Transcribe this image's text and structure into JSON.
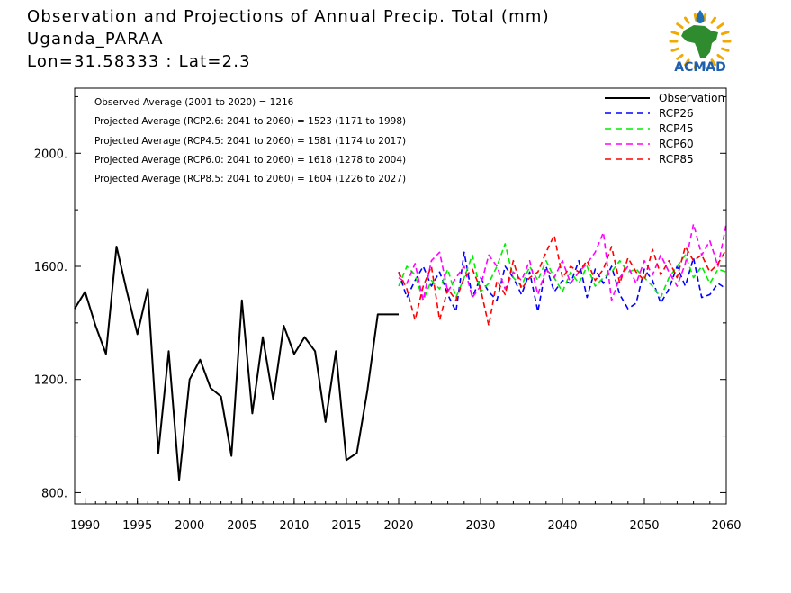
{
  "header": {
    "title_line1": "Observation and Projections of Annual Precip. Total (mm)",
    "title_line2": "Uganda_PARAA",
    "title_line3": "Lon=31.58333 : Lat=2.3"
  },
  "logo": {
    "text": "ACMAD",
    "colors": {
      "africa": "#2e8b2e",
      "drop": "#1e6fb5",
      "sun": "#f2a900",
      "text": "#1e5fae"
    }
  },
  "stats": [
    "Observed Average (2001 to 2020) = 1216",
    "Projected Average (RCP2.6: 2041 to 2060) = 1523 (1171 to 1998)",
    "Projected Average (RCP4.5: 2041 to 2060) = 1581 (1174 to 2017)",
    "Projected Average (RCP6.0: 2041 to 2060) = 1618 (1278 to 2004)",
    "Projected Average (RCP8.5: 2041 to 2060) = 1604 (1226 to 2027)"
  ],
  "chart_data": {
    "type": "line",
    "xlim": [
      1989,
      2060
    ],
    "ylim": [
      760,
      2230
    ],
    "x_ticks": [
      {
        "x": 1990,
        "label": "1990"
      },
      {
        "x": 1995,
        "label": "1995"
      },
      {
        "x": 2000,
        "label": "2000"
      },
      {
        "x": 2005,
        "label": "2005"
      },
      {
        "x": 2010,
        "label": "2010"
      },
      {
        "x": 2015,
        "label": "2015"
      },
      {
        "x": 2020,
        "label": "2020"
      },
      {
        "x": 2030,
        "label": "2030"
      },
      {
        "x": 2040,
        "label": "2040"
      },
      {
        "x": 2050,
        "label": "2050"
      },
      {
        "x": 2060,
        "label": "2060"
      }
    ],
    "y_ticks": [
      {
        "y": 800,
        "label": "800."
      },
      {
        "y": 1200,
        "label": "1200."
      },
      {
        "y": 1600,
        "label": "1600."
      },
      {
        "y": 2000,
        "label": "2000."
      }
    ],
    "y_minor_ticks": [
      1000,
      1400,
      1800,
      2200
    ],
    "legend_position": "top-right",
    "series": [
      {
        "name": "Observation",
        "color": "#000000",
        "dashed": false,
        "x": [
          1989,
          1990,
          1991,
          1992,
          1993,
          1994,
          1995,
          1996,
          1997,
          1998,
          1999,
          2000,
          2001,
          2002,
          2003,
          2004,
          2005,
          2006,
          2007,
          2008,
          2009,
          2010,
          2011,
          2012,
          2013,
          2014,
          2015,
          2016,
          2017,
          2018,
          2019,
          2020
        ],
        "values": [
          1450,
          1510,
          1390,
          1290,
          1670,
          1510,
          1360,
          1520,
          940,
          1300,
          845,
          1200,
          1270,
          1170,
          1140,
          930,
          1480,
          1080,
          1350,
          1130,
          1390,
          1290,
          1350,
          1300,
          1050,
          1300,
          915,
          940,
          1160,
          1430,
          1430,
          1430
        ]
      },
      {
        "name": "RCP26",
        "color": "#0000ff",
        "dashed": true,
        "x": [
          2020,
          2021,
          2022,
          2023,
          2024,
          2025,
          2026,
          2027,
          2028,
          2029,
          2030,
          2031,
          2032,
          2033,
          2034,
          2035,
          2036,
          2037,
          2038,
          2039,
          2040,
          2041,
          2042,
          2043,
          2044,
          2045,
          2046,
          2047,
          2048,
          2049,
          2050,
          2051,
          2052,
          2053,
          2054,
          2055,
          2056,
          2057,
          2058,
          2059,
          2060
        ],
        "values": [
          1580,
          1490,
          1550,
          1600,
          1530,
          1580,
          1500,
          1440,
          1650,
          1490,
          1560,
          1510,
          1480,
          1600,
          1560,
          1500,
          1580,
          1440,
          1600,
          1510,
          1550,
          1540,
          1620,
          1490,
          1590,
          1540,
          1600,
          1500,
          1450,
          1470,
          1590,
          1550,
          1470,
          1520,
          1600,
          1530,
          1630,
          1490,
          1500,
          1540,
          1520
        ]
      },
      {
        "name": "RCP45",
        "color": "#00ee00",
        "dashed": true,
        "x": [
          2020,
          2021,
          2022,
          2023,
          2024,
          2025,
          2026,
          2027,
          2028,
          2029,
          2030,
          2031,
          2032,
          2033,
          2034,
          2035,
          2036,
          2037,
          2038,
          2039,
          2040,
          2041,
          2042,
          2043,
          2044,
          2045,
          2046,
          2047,
          2048,
          2049,
          2050,
          2051,
          2052,
          2053,
          2054,
          2055,
          2056,
          2057,
          2058,
          2059,
          2060
        ],
        "values": [
          1530,
          1600,
          1570,
          1480,
          1550,
          1520,
          1590,
          1490,
          1560,
          1640,
          1510,
          1540,
          1600,
          1680,
          1560,
          1530,
          1600,
          1550,
          1620,
          1560,
          1510,
          1580,
          1540,
          1600,
          1530,
          1560,
          1580,
          1620,
          1580,
          1590,
          1560,
          1530,
          1490,
          1560,
          1600,
          1640,
          1560,
          1600,
          1540,
          1590,
          1580
        ]
      },
      {
        "name": "RCP60",
        "color": "#ff00ff",
        "dashed": true,
        "x": [
          2020,
          2021,
          2022,
          2023,
          2024,
          2025,
          2026,
          2027,
          2028,
          2029,
          2030,
          2031,
          2032,
          2033,
          2034,
          2035,
          2036,
          2037,
          2038,
          2039,
          2040,
          2041,
          2042,
          2043,
          2044,
          2045,
          2046,
          2047,
          2048,
          2049,
          2050,
          2051,
          2052,
          2053,
          2054,
          2055,
          2056,
          2057,
          2058,
          2059,
          2060
        ],
        "values": [
          1560,
          1540,
          1610,
          1480,
          1620,
          1650,
          1510,
          1560,
          1600,
          1490,
          1530,
          1640,
          1600,
          1520,
          1580,
          1550,
          1620,
          1500,
          1590,
          1560,
          1620,
          1540,
          1580,
          1610,
          1650,
          1720,
          1480,
          1560,
          1600,
          1540,
          1620,
          1570,
          1640,
          1580,
          1530,
          1610,
          1750,
          1640,
          1690,
          1600,
          1750
        ]
      },
      {
        "name": "RCP85",
        "color": "#ff0000",
        "dashed": true,
        "x": [
          2020,
          2021,
          2022,
          2023,
          2024,
          2025,
          2026,
          2027,
          2028,
          2029,
          2030,
          2031,
          2032,
          2033,
          2034,
          2035,
          2036,
          2037,
          2038,
          2039,
          2040,
          2041,
          2042,
          2043,
          2044,
          2045,
          2046,
          2047,
          2048,
          2049,
          2050,
          2051,
          2052,
          2053,
          2054,
          2055,
          2056,
          2057,
          2058,
          2059,
          2060
        ],
        "values": [
          1580,
          1520,
          1410,
          1530,
          1600,
          1410,
          1520,
          1480,
          1560,
          1590,
          1520,
          1390,
          1550,
          1500,
          1620,
          1520,
          1560,
          1580,
          1650,
          1710,
          1560,
          1600,
          1580,
          1620,
          1550,
          1590,
          1670,
          1540,
          1630,
          1580,
          1550,
          1660,
          1570,
          1620,
          1560,
          1670,
          1620,
          1640,
          1580,
          1610,
          1660
        ]
      }
    ]
  }
}
